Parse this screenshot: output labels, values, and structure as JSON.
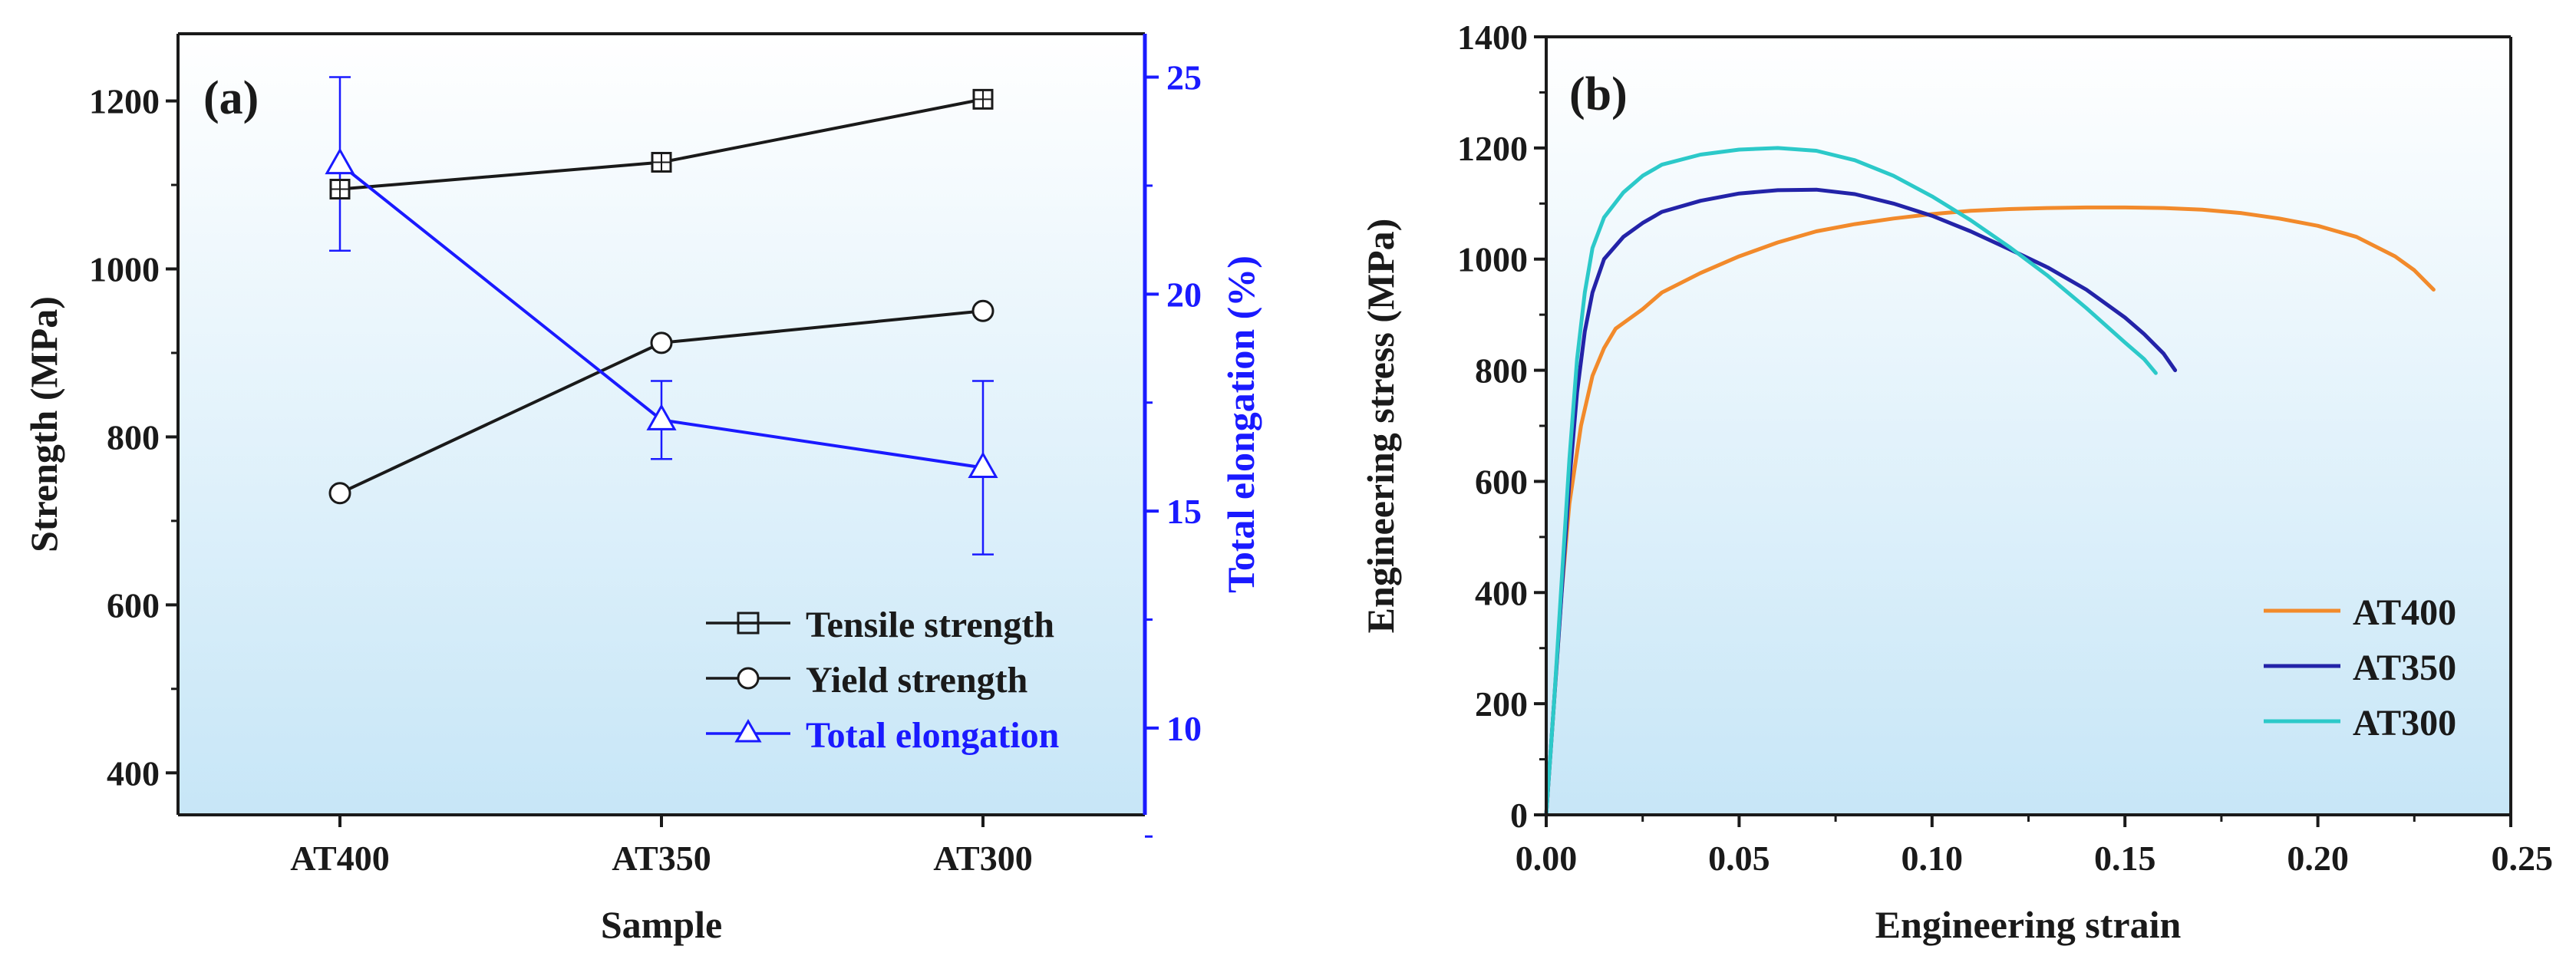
{
  "colors": {
    "bg_top": "#ffffff",
    "bg_bottom": "#c7e6f7",
    "black": "#1a1a1a",
    "blue_axis": "#1a1aff",
    "at400": "#f28a2b",
    "at350": "#2323a8",
    "at300": "#2cc9c9"
  },
  "chart_data": [
    {
      "type": "line",
      "panel_label": "(a)",
      "xlabel": "Sample",
      "ylabel": "Strength (MPa)",
      "y2label": "Total elongation (%)",
      "categories": [
        "AT400",
        "AT350",
        "AT300"
      ],
      "ylim": [
        350,
        1280
      ],
      "yticks": [
        "400",
        "600",
        "800",
        "1000",
        "1200"
      ],
      "y2lim": [
        8,
        26
      ],
      "y2ticks": [
        "10",
        "15",
        "20",
        "25"
      ],
      "series": [
        {
          "name": "Tensile strength",
          "axis": "left",
          "marker": "square",
          "color": "#1a1a1a",
          "values": [
            1095,
            1127,
            1202
          ],
          "errors": [
            0,
            0,
            0
          ]
        },
        {
          "name": "Yield strength",
          "axis": "left",
          "marker": "circle",
          "color": "#1a1a1a",
          "values": [
            733,
            912,
            950
          ],
          "errors": [
            0,
            0,
            0
          ]
        },
        {
          "name": "Total elongation",
          "axis": "right",
          "marker": "triangle",
          "color": "#1a1aff",
          "values": [
            23.0,
            17.1,
            16.0
          ],
          "errors": [
            2.0,
            0.9,
            2.0
          ]
        }
      ],
      "legend_position": "bottom-right"
    },
    {
      "type": "line",
      "panel_label": "(b)",
      "xlabel": "Engineering strain",
      "ylabel": "Engineering stress (MPa)",
      "xlim": [
        0,
        0.25
      ],
      "ylim": [
        0,
        1400
      ],
      "xticks": [
        "0.00",
        "0.05",
        "0.10",
        "0.15",
        "0.20",
        "0.25"
      ],
      "yticks": [
        "0",
        "200",
        "400",
        "600",
        "800",
        "1000",
        "1200",
        "1400"
      ],
      "series": [
        {
          "name": "AT400",
          "color": "#f28a2b",
          "points": [
            [
              0,
              0
            ],
            [
              0.002,
              200
            ],
            [
              0.004,
              400
            ],
            [
              0.006,
              560
            ],
            [
              0.009,
              700
            ],
            [
              0.012,
              790
            ],
            [
              0.015,
              840
            ],
            [
              0.018,
              875
            ],
            [
              0.02,
              885
            ],
            [
              0.025,
              910
            ],
            [
              0.03,
              940
            ],
            [
              0.04,
              975
            ],
            [
              0.05,
              1005
            ],
            [
              0.06,
              1030
            ],
            [
              0.07,
              1050
            ],
            [
              0.08,
              1063
            ],
            [
              0.09,
              1073
            ],
            [
              0.1,
              1081
            ],
            [
              0.11,
              1087
            ],
            [
              0.12,
              1090
            ],
            [
              0.13,
              1092
            ],
            [
              0.14,
              1093
            ],
            [
              0.15,
              1093
            ],
            [
              0.16,
              1092
            ],
            [
              0.17,
              1089
            ],
            [
              0.18,
              1083
            ],
            [
              0.19,
              1073
            ],
            [
              0.2,
              1060
            ],
            [
              0.21,
              1040
            ],
            [
              0.22,
              1005
            ],
            [
              0.225,
              980
            ],
            [
              0.23,
              945
            ]
          ]
        },
        {
          "name": "AT350",
          "color": "#2323a8",
          "points": [
            [
              0,
              0
            ],
            [
              0.002,
              200
            ],
            [
              0.004,
              400
            ],
            [
              0.006,
              600
            ],
            [
              0.008,
              760
            ],
            [
              0.01,
              870
            ],
            [
              0.012,
              940
            ],
            [
              0.015,
              1000
            ],
            [
              0.02,
              1040
            ],
            [
              0.025,
              1065
            ],
            [
              0.03,
              1085
            ],
            [
              0.04,
              1105
            ],
            [
              0.05,
              1118
            ],
            [
              0.06,
              1124
            ],
            [
              0.07,
              1125
            ],
            [
              0.08,
              1117
            ],
            [
              0.09,
              1100
            ],
            [
              0.1,
              1078
            ],
            [
              0.11,
              1050
            ],
            [
              0.12,
              1018
            ],
            [
              0.13,
              985
            ],
            [
              0.14,
              945
            ],
            [
              0.15,
              895
            ],
            [
              0.155,
              865
            ],
            [
              0.16,
              830
            ],
            [
              0.163,
              800
            ]
          ]
        },
        {
          "name": "AT300",
          "color": "#2cc9c9",
          "points": [
            [
              0,
              0
            ],
            [
              0.002,
              200
            ],
            [
              0.004,
              420
            ],
            [
              0.006,
              640
            ],
            [
              0.008,
              820
            ],
            [
              0.01,
              940
            ],
            [
              0.012,
              1020
            ],
            [
              0.015,
              1075
            ],
            [
              0.02,
              1120
            ],
            [
              0.025,
              1150
            ],
            [
              0.03,
              1170
            ],
            [
              0.04,
              1188
            ],
            [
              0.05,
              1197
            ],
            [
              0.06,
              1200
            ],
            [
              0.07,
              1195
            ],
            [
              0.08,
              1178
            ],
            [
              0.09,
              1150
            ],
            [
              0.1,
              1113
            ],
            [
              0.11,
              1070
            ],
            [
              0.12,
              1022
            ],
            [
              0.13,
              970
            ],
            [
              0.14,
              912
            ],
            [
              0.15,
              850
            ],
            [
              0.155,
              820
            ],
            [
              0.158,
              795
            ]
          ]
        }
      ],
      "legend_position": "right"
    }
  ]
}
